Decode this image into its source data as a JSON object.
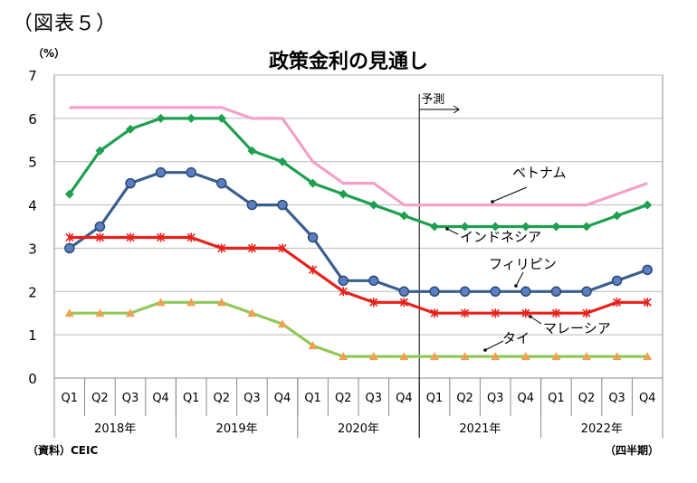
{
  "figure_label": "（図表５）",
  "source": "（資料）CEIC",
  "period_unit": "（四半期）",
  "chart_data": {
    "type": "line",
    "title": "政策金利の見通し",
    "ylabel": "（%）",
    "xlabel": "",
    "ylim": [
      0,
      7
    ],
    "yticks": [
      0,
      1,
      2,
      3,
      4,
      5,
      6,
      7
    ],
    "grid": true,
    "categories": [
      "Q1",
      "Q2",
      "Q3",
      "Q4",
      "Q1",
      "Q2",
      "Q3",
      "Q4",
      "Q1",
      "Q2",
      "Q3",
      "Q4",
      "Q1",
      "Q2",
      "Q3",
      "Q4",
      "Q1",
      "Q2",
      "Q3",
      "Q4"
    ],
    "year_groups": [
      {
        "label": "2018年",
        "span": 4
      },
      {
        "label": "2019年",
        "span": 4
      },
      {
        "label": "2020年",
        "span": 4
      },
      {
        "label": "2021年",
        "span": 4
      },
      {
        "label": "2022年",
        "span": 4
      }
    ],
    "forecast_label": "予測",
    "forecast_start_index": 12,
    "series": [
      {
        "name": "ベトナム",
        "color": "#f4a0c8",
        "marker": "none",
        "values": [
          6.25,
          6.25,
          6.25,
          6.25,
          6.25,
          6.25,
          6.0,
          6.0,
          5.0,
          4.5,
          4.5,
          4.0,
          4.0,
          4.0,
          4.0,
          4.0,
          4.0,
          4.0,
          4.25,
          4.5
        ]
      },
      {
        "name": "インドネシア",
        "color": "#1fa050",
        "marker": "diamond",
        "values": [
          4.25,
          5.25,
          5.75,
          6.0,
          6.0,
          6.0,
          5.25,
          5.0,
          4.5,
          4.25,
          4.0,
          3.75,
          3.5,
          3.5,
          3.5,
          3.5,
          3.5,
          3.5,
          3.75,
          4.0
        ]
      },
      {
        "name": "フィリピン",
        "color": "#3a5f8f",
        "marker": "circle",
        "values": [
          3.0,
          3.5,
          4.5,
          4.75,
          4.75,
          4.5,
          4.0,
          4.0,
          3.25,
          2.25,
          2.25,
          2.0,
          2.0,
          2.0,
          2.0,
          2.0,
          2.0,
          2.0,
          2.25,
          2.5
        ]
      },
      {
        "name": "マレーシア",
        "color": "#e8211b",
        "marker": "star",
        "values": [
          3.25,
          3.25,
          3.25,
          3.25,
          3.25,
          3.0,
          3.0,
          3.0,
          2.5,
          2.0,
          1.75,
          1.75,
          1.5,
          1.5,
          1.5,
          1.5,
          1.5,
          1.5,
          1.75,
          1.75
        ]
      },
      {
        "name": "タイ",
        "color": "#92c85a",
        "marker": "triangle",
        "values": [
          1.5,
          1.5,
          1.5,
          1.75,
          1.75,
          1.75,
          1.5,
          1.25,
          0.75,
          0.5,
          0.5,
          0.5,
          0.5,
          0.5,
          0.5,
          0.5,
          0.5,
          0.5,
          0.5,
          0.5
        ]
      }
    ],
    "marker_colors": {
      "triangle": "#f0a050"
    }
  }
}
